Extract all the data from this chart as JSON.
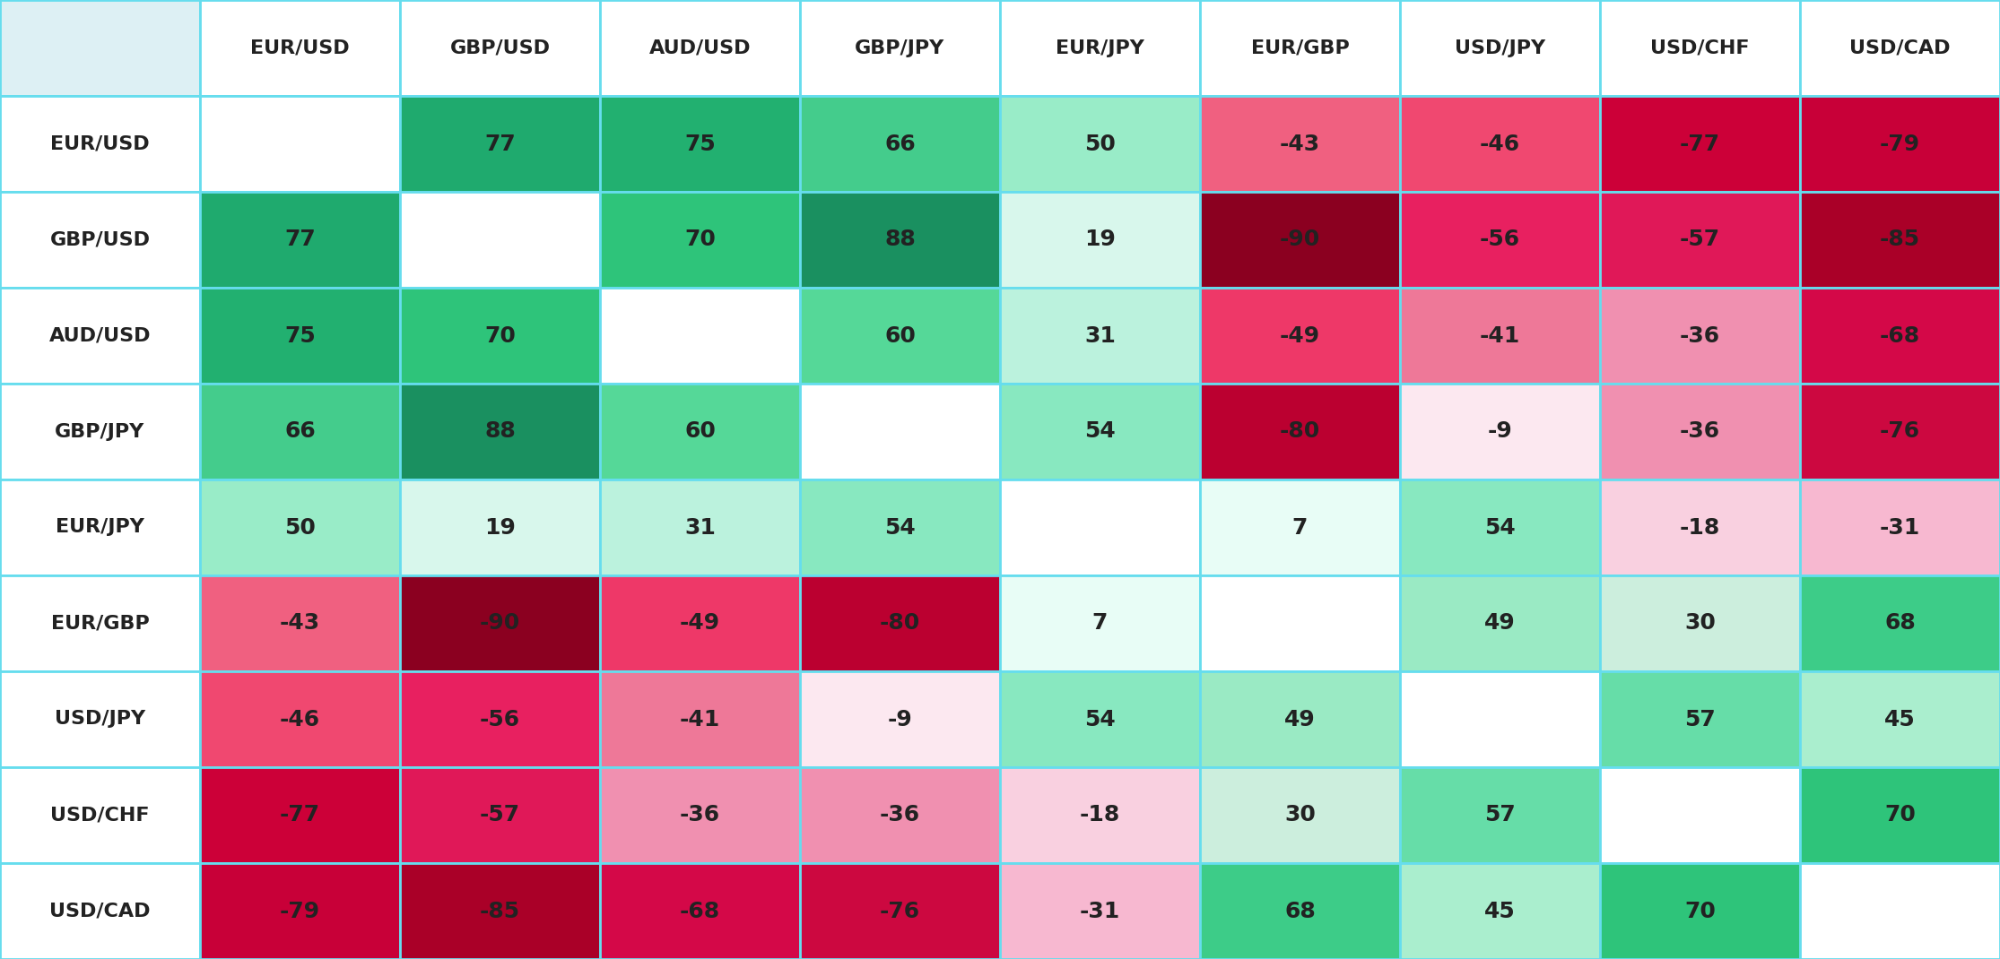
{
  "pairs": [
    "EUR/USD",
    "GBP/USD",
    "AUD/USD",
    "GBP/JPY",
    "EUR/JPY",
    "EUR/GBP",
    "USD/JPY",
    "USD/CHF",
    "USD/CAD"
  ],
  "matrix": [
    [
      null,
      77,
      75,
      66,
      50,
      -43,
      -46,
      -77,
      -79
    ],
    [
      77,
      null,
      70,
      88,
      19,
      -90,
      -56,
      -57,
      -85
    ],
    [
      75,
      70,
      null,
      60,
      31,
      -49,
      -41,
      -36,
      -68
    ],
    [
      66,
      88,
      60,
      null,
      54,
      -80,
      -9,
      -36,
      -76
    ],
    [
      50,
      19,
      31,
      54,
      null,
      7,
      54,
      -18,
      -31
    ],
    [
      -43,
      -90,
      -49,
      -80,
      7,
      null,
      49,
      30,
      68
    ],
    [
      -46,
      -56,
      -41,
      -9,
      54,
      49,
      null,
      57,
      45
    ],
    [
      -77,
      -57,
      -36,
      -36,
      -18,
      30,
      57,
      null,
      70
    ],
    [
      -79,
      -85,
      -68,
      -76,
      -31,
      68,
      45,
      70,
      null
    ]
  ],
  "corner_bg": "#ddf0f4",
  "header_bg": "#ffffff",
  "row_label_bg": "#ffffff",
  "diagonal_bg": "#ffffff",
  "border_color": "#66ddee",
  "text_color": "#222222",
  "header_text_color": "#222222",
  "cell_colors_pos": {
    "88": "#1a9060",
    "77": "#1faa6e",
    "75": "#22b070",
    "70": "#2ec47a",
    "68": "#3dcc88",
    "66": "#44cc8c",
    "60": "#55d898",
    "57": "#66dda8",
    "54": "#88e8c0",
    "50": "#99ecc8",
    "49": "#99eaC4",
    "45": "#aaeece",
    "31": "#bbf2dd",
    "30": "#cceedd",
    "19": "#d8f7ec",
    "7": "#e8fdf6"
  },
  "cell_colors_neg": {
    "-9": "#fce8f0",
    "-18": "#f9d0e0",
    "-31": "#f7b8d0",
    "-36": "#f090b0",
    "-41": "#ee7898",
    "-43": "#f06080",
    "-46": "#f04870",
    "-49": "#ee3868",
    "-56": "#e82060",
    "-57": "#e01858",
    "-68": "#d40848",
    "-76": "#cc0840",
    "-77": "#cc0038",
    "-79": "#c80038",
    "-80": "#bb0030",
    "-85": "#aa0028",
    "-90": "#8b0020"
  },
  "figsize": [
    22.3,
    10.7
  ],
  "dpi": 100
}
